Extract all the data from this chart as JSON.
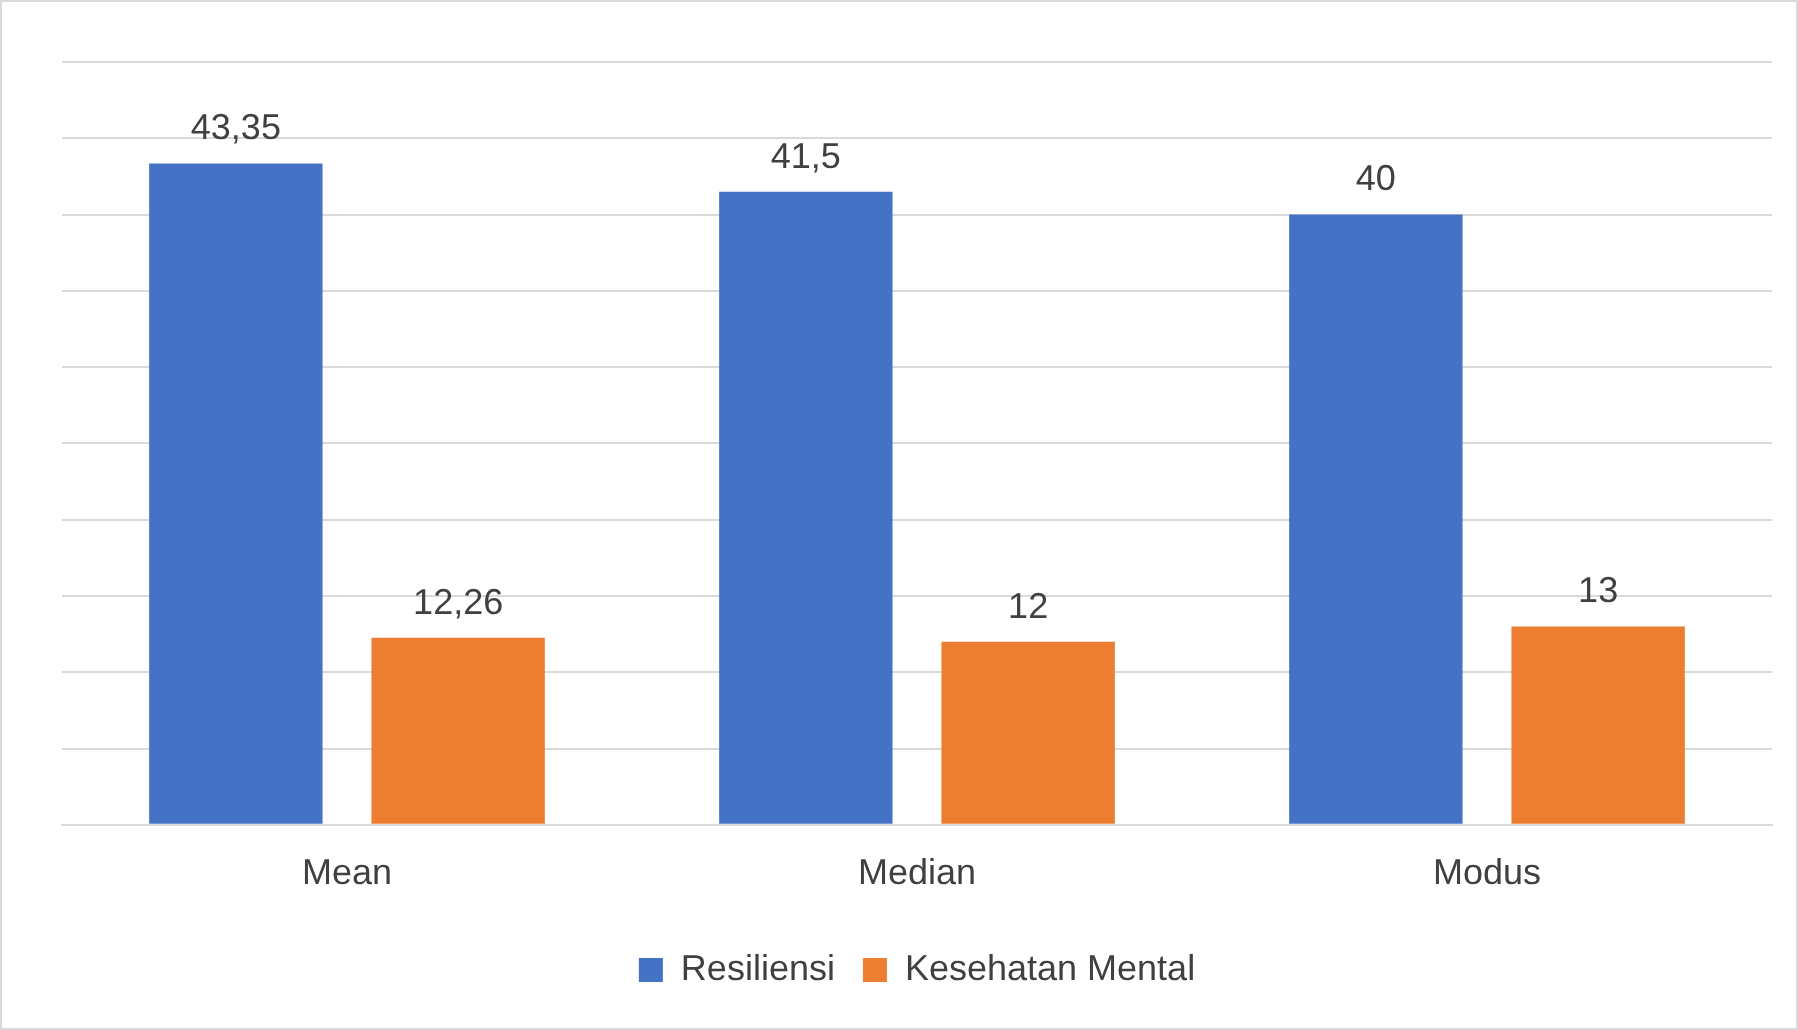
{
  "chart_data": {
    "type": "bar",
    "categories": [
      "Mean",
      "Median",
      "Modus"
    ],
    "series": [
      {
        "name": "Resiliensi",
        "color": "#4472c4",
        "values": [
          43.35,
          41.5,
          40
        ],
        "value_labels": [
          "43,35",
          "41,5",
          "40"
        ]
      },
      {
        "name": "Kesehatan Mental",
        "color": "#ed7d31",
        "values": [
          12.26,
          12,
          13
        ],
        "value_labels": [
          "12,26",
          "12",
          "13"
        ]
      }
    ],
    "ylim": [
      0,
      50
    ],
    "yticks": [
      {
        "value": 0,
        "label": null
      },
      {
        "value": 5,
        "label": null
      },
      {
        "value": 10,
        "label": null
      },
      {
        "value": 15,
        "label": null
      },
      {
        "value": 20,
        "label": null
      },
      {
        "value": 25,
        "label": null
      },
      {
        "value": 30,
        "label": null
      },
      {
        "value": 35,
        "label": null
      },
      {
        "value": 40,
        "label": null
      },
      {
        "value": 45,
        "label": null
      },
      {
        "value": 50,
        "label": null
      }
    ],
    "grid": "y",
    "legend": "bottom",
    "tick_labels": "x"
  }
}
